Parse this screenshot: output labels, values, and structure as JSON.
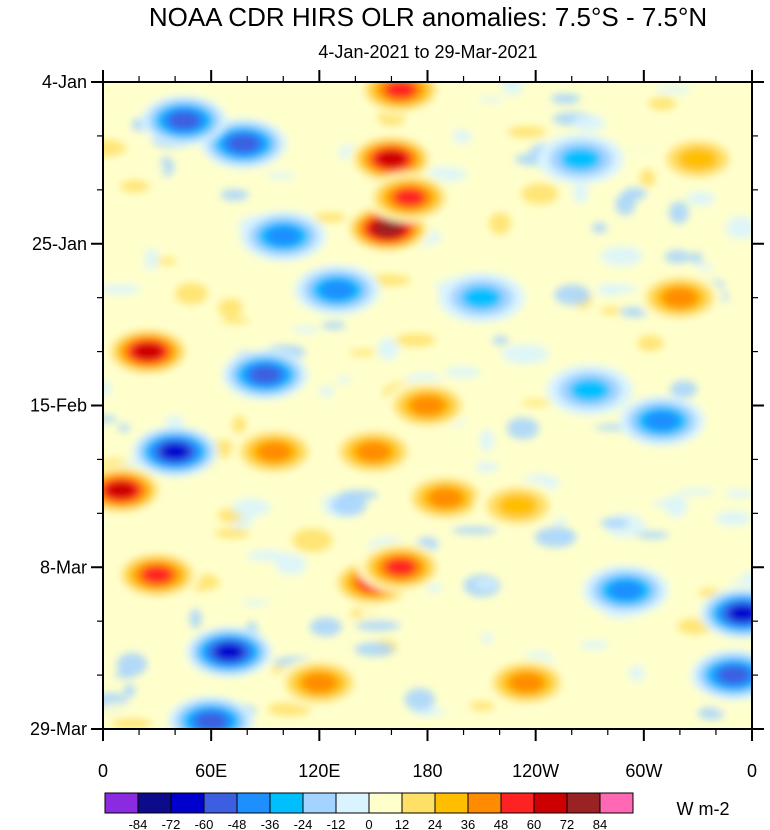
{
  "chart_data": {
    "type": "heatmap",
    "title": "NOAA CDR HIRS OLR anomalies: 7.5°S - 7.5°N",
    "subtitle": "4-Jan-2021 to 29-Mar-2021",
    "x_ticks": [
      {
        "lon": 0,
        "label": "0"
      },
      {
        "lon": 60,
        "label": "60E"
      },
      {
        "lon": 120,
        "label": "120E"
      },
      {
        "lon": 180,
        "label": "180"
      },
      {
        "lon": 240,
        "label": "120W"
      },
      {
        "lon": 300,
        "label": "60W"
      },
      {
        "lon": 360,
        "label": "0"
      }
    ],
    "xlim": [
      0,
      360
    ],
    "y_ticks": [
      {
        "day": 0,
        "label": "4-Jan"
      },
      {
        "day": 21,
        "label": "25-Jan"
      },
      {
        "day": 42,
        "label": "15-Feb"
      },
      {
        "day": 63,
        "label": "8-Mar"
      },
      {
        "day": 84,
        "label": "29-Mar"
      }
    ],
    "ylim": [
      0,
      84
    ],
    "colorbar": {
      "levels": [
        "-84",
        "-72",
        "-60",
        "-48",
        "-36",
        "-24",
        "-12",
        "0",
        "12",
        "24",
        "36",
        "48",
        "60",
        "72",
        "84"
      ],
      "colors": [
        "#8a2be2",
        "#0b0b8b",
        "#0000cd",
        "#3b5fe0",
        "#1e8fff",
        "#00bfff",
        "#a4d3ff",
        "#d9f4ff",
        "#ffffcc",
        "#ffe066",
        "#ffbf00",
        "#ff8c00",
        "#ff2222",
        "#cc0000",
        "#992222",
        "#ff69b4"
      ],
      "units": "W m-2"
    },
    "anomaly_features": [
      {
        "lon": 165,
        "day": 1,
        "value": 48
      },
      {
        "lon": 160,
        "day": 10,
        "value": 55
      },
      {
        "lon": 158,
        "day": 19,
        "value": 70
      },
      {
        "lon": 170,
        "day": 15,
        "value": 45
      },
      {
        "lon": 78,
        "day": 8,
        "value": -45
      },
      {
        "lon": 45,
        "day": 5,
        "value": -40
      },
      {
        "lon": 40,
        "day": 48,
        "value": -60
      },
      {
        "lon": 90,
        "day": 38,
        "value": -40
      },
      {
        "lon": 25,
        "day": 35,
        "value": 50
      },
      {
        "lon": 10,
        "day": 53,
        "value": 50
      },
      {
        "lon": 30,
        "day": 64,
        "value": 42
      },
      {
        "lon": 150,
        "day": 65,
        "value": 48
      },
      {
        "lon": 165,
        "day": 63,
        "value": 40
      },
      {
        "lon": 355,
        "day": 69,
        "value": -55
      },
      {
        "lon": 350,
        "day": 77,
        "value": -45
      },
      {
        "lon": 70,
        "day": 74,
        "value": -50
      },
      {
        "lon": 60,
        "day": 83,
        "value": -45
      },
      {
        "lon": 100,
        "day": 20,
        "value": -35
      },
      {
        "lon": 130,
        "day": 27,
        "value": -30
      },
      {
        "lon": 210,
        "day": 28,
        "value": -20
      },
      {
        "lon": 265,
        "day": 10,
        "value": -20
      },
      {
        "lon": 320,
        "day": 28,
        "value": 25
      },
      {
        "lon": 180,
        "day": 42,
        "value": 30
      },
      {
        "lon": 190,
        "day": 54,
        "value": 25
      },
      {
        "lon": 230,
        "day": 55,
        "value": 20
      },
      {
        "lon": 290,
        "day": 66,
        "value": -30
      },
      {
        "lon": 310,
        "day": 44,
        "value": -30
      },
      {
        "lon": 235,
        "day": 78,
        "value": 28
      },
      {
        "lon": 150,
        "day": 48,
        "value": 30
      },
      {
        "lon": 95,
        "day": 48,
        "value": 35
      },
      {
        "lon": 120,
        "day": 78,
        "value": 30
      },
      {
        "lon": 270,
        "day": 40,
        "value": -20
      },
      {
        "lon": 330,
        "day": 10,
        "value": 20
      }
    ]
  }
}
